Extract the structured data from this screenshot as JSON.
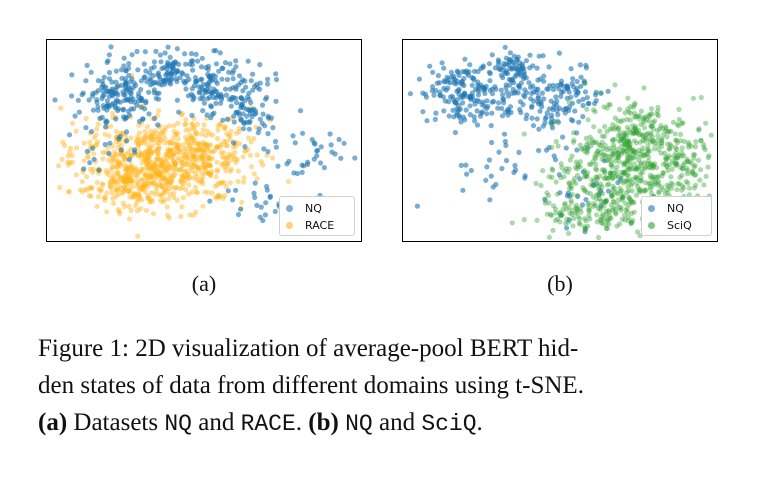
{
  "figure": {
    "panel_a_label": "(a)",
    "panel_b_label": "(b)",
    "caption": {
      "prefix": "Figure 1: 2D visualization of average-pool BERT hid-den states of data from different domains using t-SNE.",
      "line1": "Figure 1: 2D visualization of average-pool BERT hid-",
      "line2": "den states of data from different domains using t-SNE.",
      "part_a_label": "(a)",
      "part_a_text": " Datasets ",
      "part_a_ds1": "NQ",
      "part_a_and": " and ",
      "part_a_ds2": "RACE",
      "part_a_end": ". ",
      "part_b_label": "(b)",
      "part_b_ds1": "NQ",
      "part_b_and": " and ",
      "part_b_ds2": "SciQ",
      "part_b_end": "."
    }
  },
  "chart_data": [
    {
      "type": "scatter",
      "title": "",
      "xlabel": "",
      "ylabel": "",
      "axes_ticks": false,
      "legend_position": "bottom-right",
      "series": [
        {
          "name": "NQ",
          "color": "#1f77b4"
        },
        {
          "name": "RACE",
          "color": "#ffb31a"
        }
      ]
    },
    {
      "type": "scatter",
      "title": "",
      "xlabel": "",
      "ylabel": "",
      "axes_ticks": false,
      "legend_position": "bottom-right",
      "series": [
        {
          "name": "NQ",
          "color": "#1f77b4"
        },
        {
          "name": "SciQ",
          "color": "#2ca02c"
        }
      ]
    }
  ]
}
